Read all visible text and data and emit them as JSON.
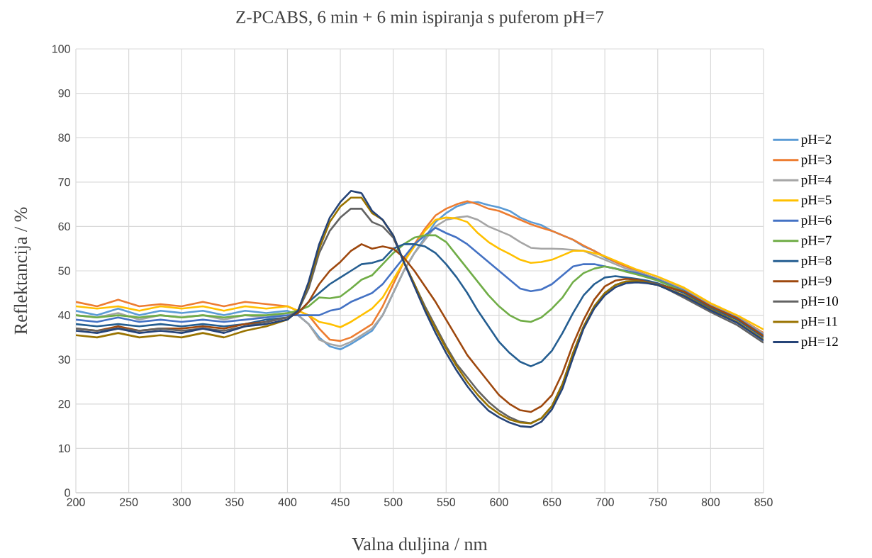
{
  "chart_data": {
    "type": "line",
    "title": "Z-PCABS, 6 min + 6 min ispiranja s puferom pH=7",
    "xlabel": "Valna duljina / nm",
    "ylabel": "Reflektancija / %",
    "x": [
      200,
      220,
      240,
      260,
      280,
      300,
      320,
      340,
      360,
      380,
      400,
      410,
      420,
      430,
      440,
      450,
      460,
      470,
      480,
      490,
      500,
      510,
      520,
      530,
      540,
      550,
      560,
      570,
      580,
      590,
      600,
      610,
      620,
      630,
      640,
      650,
      660,
      670,
      680,
      690,
      700,
      710,
      720,
      730,
      740,
      750,
      775,
      800,
      825,
      850
    ],
    "xlim": [
      200,
      850
    ],
    "ylim": [
      0,
      100
    ],
    "xticks": [
      200,
      250,
      300,
      350,
      400,
      450,
      500,
      550,
      600,
      650,
      700,
      750,
      800,
      850
    ],
    "yticks": [
      0,
      10,
      20,
      30,
      40,
      50,
      60,
      70,
      80,
      90,
      100
    ],
    "grid": true,
    "legend": "right",
    "series": [
      {
        "name": "pH=2",
        "color": "#5b9bd5",
        "values": [
          41,
          40,
          41.5,
          40,
          41,
          40.5,
          41,
          40,
          41,
          40.5,
          41,
          40,
          38,
          35,
          33,
          32.3,
          33.5,
          35,
          36.5,
          40,
          45,
          50,
          54,
          57.5,
          61,
          63,
          64.5,
          65.3,
          65.5,
          64.8,
          64.3,
          63.5,
          62,
          61,
          60.3,
          59,
          58,
          57,
          55.5,
          54.5,
          53,
          52,
          51,
          50,
          49,
          48,
          45.5,
          42,
          39.5,
          35.5
        ]
      },
      {
        "name": "pH=3",
        "color": "#ed7d31",
        "values": [
          43,
          42,
          43.5,
          42,
          42.5,
          42,
          43,
          42,
          43,
          42.5,
          42,
          41,
          40,
          37,
          34.5,
          34.2,
          35,
          36.5,
          38,
          42,
          47,
          52,
          56,
          59.5,
          62.5,
          64,
          65,
          65.7,
          65,
          64,
          63.5,
          62.5,
          61.5,
          60.5,
          59.7,
          59,
          58,
          57,
          55.7,
          54.5,
          53.2,
          52,
          51,
          50,
          49,
          48.2,
          45.8,
          42.3,
          39.7,
          36
        ]
      },
      {
        "name": "pH=4",
        "color": "#a5a5a5",
        "values": [
          40,
          39.5,
          40.5,
          39,
          40,
          39.5,
          40,
          39,
          40,
          39.5,
          40.5,
          40,
          38,
          34.5,
          33.5,
          33,
          34,
          35.5,
          37,
          40,
          45,
          50,
          54,
          57,
          60,
          61.5,
          62,
          62.3,
          61.5,
          60,
          59,
          58,
          56.5,
          55.2,
          55,
          55,
          54.9,
          54.7,
          54.5,
          53.5,
          52.5,
          51.5,
          50.5,
          49.8,
          49,
          48.2,
          45.8,
          42.2,
          39.6,
          35.8
        ]
      },
      {
        "name": "pH=5",
        "color": "#ffc000",
        "values": [
          42,
          41.5,
          42,
          41,
          42,
          41.5,
          42,
          41,
          42,
          41.5,
          42,
          41,
          40,
          38.5,
          38,
          37.3,
          38.5,
          40,
          41.5,
          44,
          48,
          52,
          55.5,
          59,
          61.5,
          62,
          61.8,
          61,
          58.5,
          56.5,
          55,
          53.8,
          52.5,
          51.8,
          52,
          52.5,
          53.5,
          54.5,
          54.5,
          54,
          53.3,
          52.3,
          51.3,
          50.3,
          49.5,
          48.7,
          46.2,
          42.7,
          40,
          36.8
        ]
      },
      {
        "name": "pH=6",
        "color": "#4472c4",
        "values": [
          39,
          38.5,
          39.5,
          38.5,
          39,
          38.5,
          39,
          38.5,
          39,
          39.5,
          40,
          40,
          40,
          40,
          41,
          41.5,
          43,
          44,
          45,
          47,
          50,
          53,
          56,
          58,
          59.7,
          58.5,
          57.5,
          56,
          54,
          52,
          50,
          48,
          46,
          45.4,
          45.8,
          47,
          49,
          51,
          51.5,
          51.5,
          51,
          50.5,
          50,
          49.5,
          48.8,
          48,
          45.5,
          42,
          39.4,
          35.5
        ]
      },
      {
        "name": "pH=7",
        "color": "#70ad47",
        "values": [
          40,
          39.5,
          40,
          39.5,
          40,
          39.5,
          40,
          39.5,
          40,
          40,
          40.5,
          41,
          42,
          44,
          43.8,
          44.2,
          46,
          48,
          49,
          51.5,
          54,
          56,
          57.5,
          58,
          58,
          56.5,
          53.5,
          50.5,
          47.5,
          44.5,
          42,
          40,
          38.8,
          38.5,
          39.5,
          41.5,
          44,
          47.5,
          49.5,
          50.5,
          51,
          50.5,
          49.8,
          49.2,
          48.5,
          47.8,
          45.3,
          41.8,
          39.2,
          35.3
        ]
      },
      {
        "name": "pH=8",
        "color": "#255e91",
        "values": [
          38,
          37.5,
          38,
          37.5,
          38,
          37.5,
          38,
          37.5,
          38,
          39,
          39.5,
          40.5,
          43,
          45,
          47,
          48.5,
          50,
          51.5,
          51.8,
          52.5,
          55,
          56,
          56,
          55.5,
          54,
          51.5,
          48.5,
          45,
          41,
          37.5,
          34,
          31.5,
          29.5,
          28.5,
          29.5,
          32,
          36,
          40.5,
          44.5,
          47,
          48.5,
          48.8,
          48.5,
          48.2,
          47.8,
          47.2,
          45,
          41.6,
          39,
          35
        ]
      },
      {
        "name": "pH=9",
        "color": "#9e480e",
        "values": [
          37,
          36.5,
          37.5,
          36.5,
          37,
          37,
          37.5,
          37,
          38,
          38.5,
          39.5,
          40.5,
          43,
          47,
          50,
          52,
          54.5,
          56,
          55,
          55.5,
          55,
          53,
          50,
          46.5,
          43,
          39,
          35,
          31,
          28,
          25,
          22,
          20,
          18.6,
          18.2,
          19.5,
          22,
          27,
          33.5,
          39,
          43.5,
          46.5,
          47.8,
          48.2,
          48,
          47.5,
          47,
          45.3,
          42,
          39.3,
          35.3
        ]
      },
      {
        "name": "pH=10",
        "color": "#636363",
        "values": [
          37,
          36.5,
          37,
          36.5,
          37,
          36.5,
          37,
          36.5,
          37.5,
          38.5,
          39.5,
          41,
          46,
          54,
          59,
          62,
          64,
          64,
          61,
          60,
          57.5,
          52,
          47,
          42,
          37.5,
          33,
          29,
          26,
          23,
          20.5,
          18.5,
          17,
          16,
          15.7,
          16.8,
          19.5,
          24.5,
          31.5,
          37.5,
          42,
          45,
          46.8,
          47.6,
          47.7,
          47.4,
          47,
          43.9,
          40.7,
          37.8,
          33.8
        ]
      },
      {
        "name": "pH=11",
        "color": "#997300",
        "values": [
          35.5,
          35,
          36,
          35,
          35.5,
          35,
          36,
          35,
          36.5,
          37.5,
          39,
          41,
          47,
          55,
          61,
          64.5,
          66.5,
          66.5,
          63,
          61.5,
          58,
          52,
          47,
          41.5,
          37,
          32.5,
          28.5,
          25,
          22,
          19.5,
          17.8,
          16.5,
          15.8,
          15.6,
          16.8,
          19.5,
          24.5,
          31.5,
          37.5,
          42,
          45,
          46.8,
          47.6,
          47.7,
          47.3,
          46.8,
          44.5,
          41.3,
          38.5,
          34.5
        ]
      },
      {
        "name": "pH=12",
        "color": "#264478",
        "values": [
          36.5,
          36,
          37,
          36,
          36.5,
          36,
          37,
          36,
          37.5,
          38,
          39,
          41,
          47.5,
          56,
          62,
          65.5,
          68,
          67.5,
          63.5,
          61.5,
          58,
          52,
          46.5,
          41,
          36,
          31.5,
          27.5,
          24,
          21,
          18.5,
          17,
          15.8,
          15,
          14.8,
          16,
          18.8,
          23.5,
          30.5,
          37,
          41.5,
          44.5,
          46.3,
          47.2,
          47.4,
          47.2,
          46.8,
          44.3,
          41.1,
          38.3,
          34.3
        ]
      }
    ]
  }
}
